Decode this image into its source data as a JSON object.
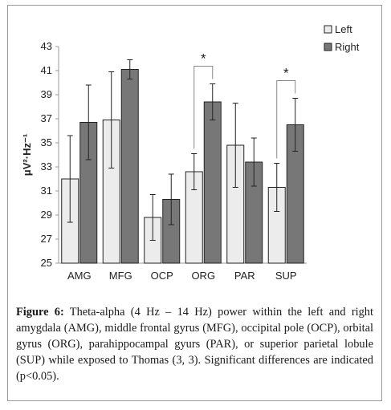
{
  "chart_data": {
    "type": "bar",
    "ylabel": "μV²·Hz⁻¹",
    "ylim": [
      25,
      43
    ],
    "yticks": [
      25,
      27,
      29,
      31,
      33,
      35,
      37,
      39,
      41,
      43
    ],
    "grid": false,
    "legend_position": "top-right",
    "categories": [
      "AMG",
      "MFG",
      "OCP",
      "ORG",
      "PAR",
      "SUP"
    ],
    "series": [
      {
        "name": "Left",
        "color": "#ececec",
        "values": [
          32.0,
          36.9,
          28.8,
          32.6,
          34.8,
          31.3
        ],
        "error": [
          3.6,
          4.0,
          1.9,
          1.5,
          3.5,
          2.0
        ]
      },
      {
        "name": "Right",
        "color": "#777777",
        "values": [
          36.7,
          41.1,
          30.3,
          38.4,
          33.4,
          36.5
        ],
        "error": [
          3.1,
          0.8,
          2.1,
          1.5,
          2.0,
          2.2
        ]
      }
    ],
    "significance": [
      {
        "category": "ORG",
        "label": "*"
      },
      {
        "category": "SUP",
        "label": "*"
      }
    ]
  },
  "caption": {
    "lead": "Figure 6:",
    "text": " Theta-alpha (4 Hz – 14 Hz) power within the left and right amygdala (AMG), middle frontal gyrus (MFG), occipital pole (OCP), orbital gyrus (ORG), parahippocampal gyurs (PAR), or superior parietal lobule (SUP) while exposed to Thomas (3, 3). Significant differences are indicated (p<0.05)."
  }
}
